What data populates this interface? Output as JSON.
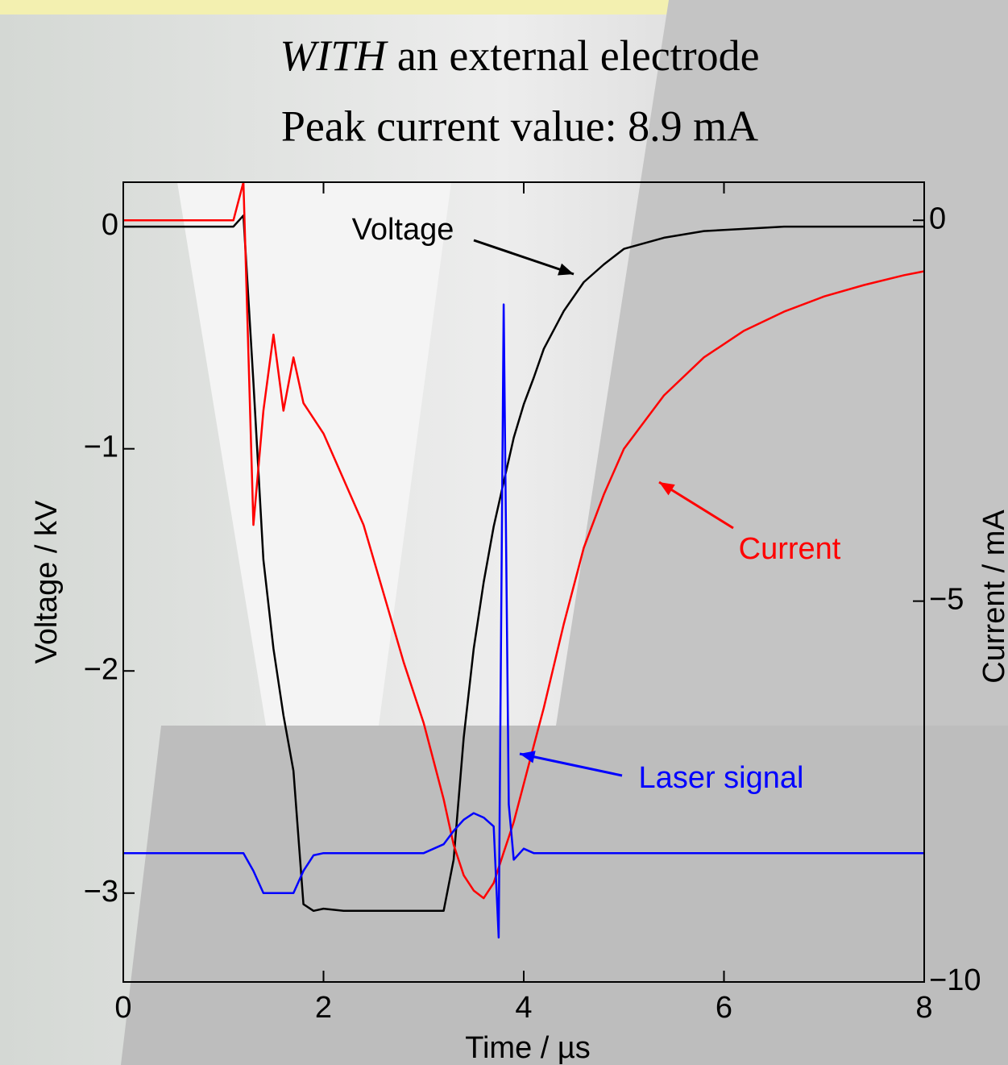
{
  "chart_data": {
    "type": "line",
    "title_emphasis": "WITH",
    "title": "an external electrode",
    "subtitle": "Peak current value: 8.9 mA",
    "x_label": "Time / µs",
    "y_label": "Voltage / kV",
    "y2_label": "Current / mA",
    "xlim": [
      0,
      8
    ],
    "xticks": [
      0,
      2,
      4,
      6,
      8
    ],
    "ylim": [
      -3.4,
      0.2
    ],
    "yticks": [
      0,
      {
        "value": -1,
        "label": "−1"
      },
      {
        "value": -2,
        "label": "−2"
      },
      {
        "value": -3,
        "label": "−3"
      }
    ],
    "y2lim": [
      -10,
      0.5
    ],
    "y2ticks": [
      0,
      {
        "value": -5,
        "label": "−5"
      },
      {
        "value": -10,
        "label": "−10"
      }
    ],
    "x": [
      0,
      0.4,
      0.8,
      1.0,
      1.1,
      1.2,
      1.3,
      1.4,
      1.5,
      1.6,
      1.7,
      1.8,
      1.9,
      2.0,
      2.2,
      2.4,
      2.6,
      2.8,
      3.0,
      3.1,
      3.2,
      3.3,
      3.4,
      3.5,
      3.6,
      3.7,
      3.75,
      3.8,
      3.85,
      3.9,
      4.0,
      4.1,
      4.2,
      4.4,
      4.6,
      4.8,
      5.0,
      5.4,
      5.8,
      6.2,
      6.6,
      7.0,
      7.4,
      7.8,
      8.0
    ],
    "series": [
      {
        "name": "Voltage",
        "color": "#000000",
        "values": [
          0,
          0,
          0,
          0,
          0,
          0.05,
          -0.7,
          -1.5,
          -1.9,
          -2.2,
          -2.45,
          -3.05,
          -3.08,
          -3.07,
          -3.08,
          -3.08,
          -3.08,
          -3.08,
          -3.08,
          -3.08,
          -3.08,
          -2.85,
          -2.3,
          -1.9,
          -1.6,
          -1.35,
          -1.25,
          -1.15,
          -1.05,
          -0.95,
          -0.8,
          -0.68,
          -0.55,
          -0.38,
          -0.25,
          -0.17,
          -0.1,
          -0.05,
          -0.02,
          -0.01,
          0,
          0,
          0,
          0,
          0
        ]
      },
      {
        "name": "Current",
        "color": "#ff0000",
        "axis": "y2",
        "values": [
          0,
          0,
          0,
          0,
          0,
          0.5,
          -4,
          -2.5,
          -1.5,
          -2.5,
          -1.8,
          -2.4,
          -2.6,
          -2.8,
          -3.4,
          -4.0,
          -4.9,
          -5.8,
          -6.6,
          -7.1,
          -7.6,
          -8.2,
          -8.6,
          -8.8,
          -8.9,
          -8.7,
          -8.5,
          -8.3,
          -8.1,
          -7.9,
          -7.4,
          -6.9,
          -6.4,
          -5.3,
          -4.3,
          -3.6,
          -3.0,
          -2.3,
          -1.8,
          -1.45,
          -1.2,
          -1.0,
          -0.85,
          -0.72,
          -0.67
        ]
      },
      {
        "name": "Laser signal",
        "color": "#0000ff",
        "values": [
          -2.82,
          -2.82,
          -2.82,
          -2.82,
          -2.82,
          -2.82,
          -2.9,
          -3.0,
          -3.0,
          -3.0,
          -3.0,
          -2.9,
          -2.83,
          -2.82,
          -2.82,
          -2.82,
          -2.82,
          -2.82,
          -2.82,
          -2.8,
          -2.78,
          -2.72,
          -2.67,
          -2.64,
          -2.66,
          -2.7,
          -3.2,
          -0.35,
          -2.6,
          -2.85,
          -2.8,
          -2.82,
          -2.82,
          -2.82,
          -2.82,
          -2.82,
          -2.82,
          -2.82,
          -2.82,
          -2.82,
          -2.82,
          -2.82,
          -2.82,
          -2.82,
          -2.82
        ]
      }
    ]
  }
}
